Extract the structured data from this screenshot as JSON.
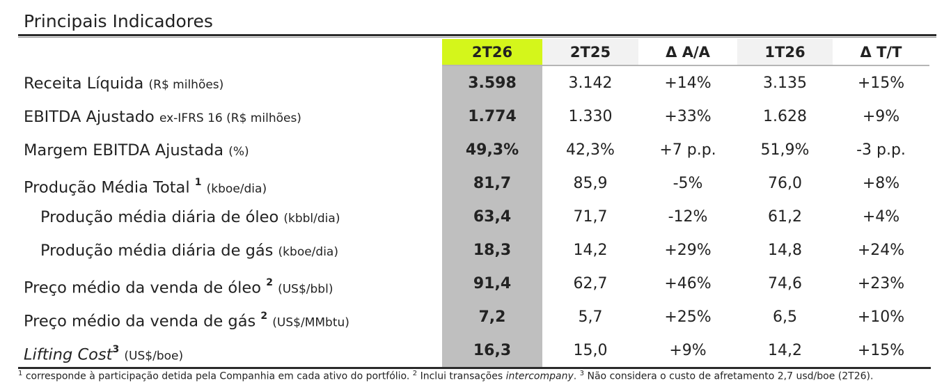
{
  "title": "Principais Indicadores",
  "columns": [
    "2T26",
    "2T25",
    "Δ A/A",
    "1T26",
    "Δ T/T"
  ],
  "colors": {
    "highlight_header": "#d4f61b",
    "highlight_column": "#bfbfbf",
    "shaded_header": "#f2f2f2"
  },
  "rows": [
    {
      "label": "Receita Líquida",
      "sup": "",
      "unit": "(R$ milhões)",
      "values": [
        "3.598",
        "3.142",
        "+14%",
        "3.135",
        "+15%"
      ]
    },
    {
      "label": "EBITDA Ajustado",
      "sup": "",
      "unit": "ex-IFRS 16 (R$ milhões)",
      "values": [
        "1.774",
        "1.330",
        "+33%",
        "1.628",
        "+9%"
      ]
    },
    {
      "label": "Margem EBITDA Ajustada",
      "sup": "",
      "unit": "(%)",
      "values": [
        "49,3%",
        "42,3%",
        "+7 p.p.",
        "51,9%",
        "-3 p.p."
      ]
    },
    {
      "label": "Produção Média Total",
      "sup": "1",
      "unit": "(kboe/dia)",
      "values": [
        "81,7",
        "85,9",
        "-5%",
        "76,0",
        "+8%"
      ]
    },
    {
      "label": "Produção média diária de óleo",
      "sup": "",
      "unit": "(kbbl/dia)",
      "values": [
        "63,4",
        "71,7",
        "-12%",
        "61,2",
        "+4%"
      ]
    },
    {
      "label": "Produção média diária de gás",
      "sup": "",
      "unit": "(kboe/dia)",
      "values": [
        "18,3",
        "14,2",
        "+29%",
        "14,8",
        "+24%"
      ]
    },
    {
      "label": "Preço médio da venda de óleo",
      "sup": "2",
      "unit": "(US$/bbl)",
      "values": [
        "91,4",
        "62,7",
        "+46%",
        "74,6",
        "+23%"
      ]
    },
    {
      "label": "Preço médio da venda de gás",
      "sup": "2",
      "unit": "(US$/MMbtu)",
      "values": [
        "7,2",
        "5,7",
        "+25%",
        "6,5",
        "+10%"
      ]
    },
    {
      "label": "Lifting Cost",
      "sup": "3",
      "unit": "(US$/boe)",
      "values": [
        "16,3",
        "15,0",
        "+9%",
        "14,2",
        "+15%"
      ]
    }
  ],
  "footnote": {
    "n1": "1",
    "t1": " corresponde à participação detida pela Companhia em cada ativo do portfólio. ",
    "n2": "2",
    "t2": " Inclui transações ",
    "t2_italic": "intercompany",
    "t2_end": ". ",
    "n3": "3",
    "t3": " Não considera o custo de afretamento 2,7 usd/boe (2T26)."
  }
}
